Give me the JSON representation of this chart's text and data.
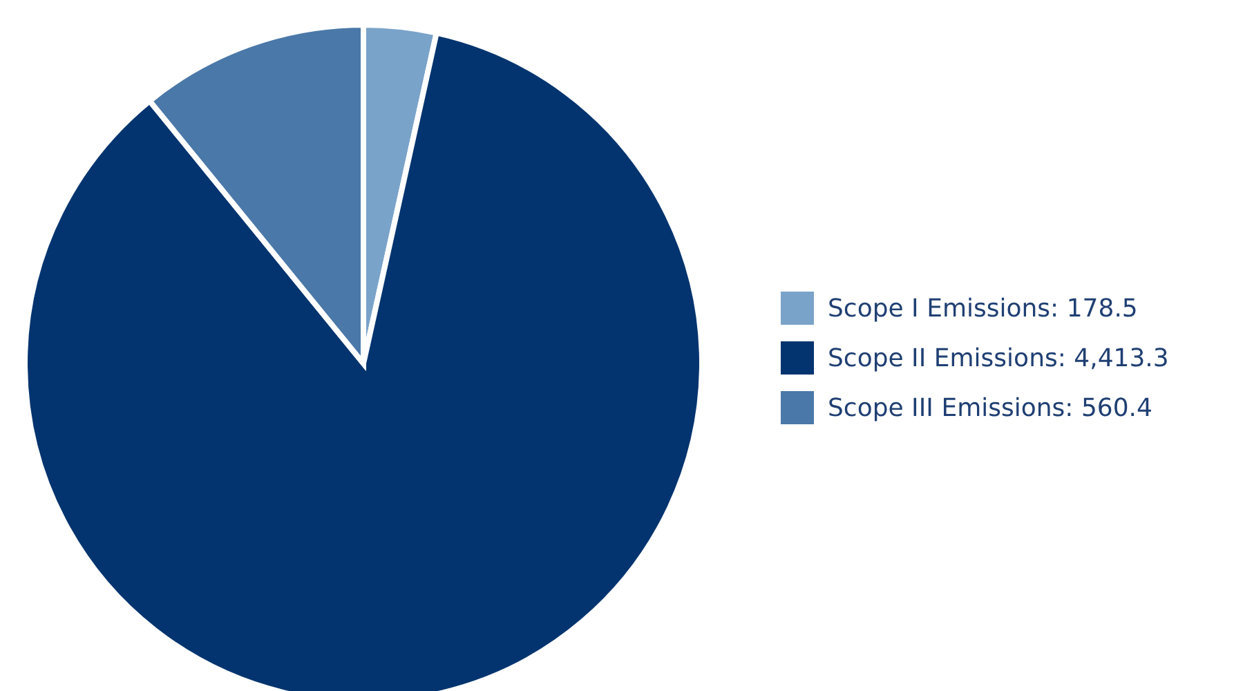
{
  "chart_data": {
    "type": "pie",
    "categories": [
      "Scope I Emissions: 178.5",
      "Scope II Emissions: 4,413.3",
      "Scope III Emissions: 560.4"
    ],
    "values": [
      178.5,
      4413.3,
      560.4
    ],
    "colors": [
      "#7aa3c9",
      "#03346f",
      "#4a78a8"
    ],
    "legend": "right"
  }
}
